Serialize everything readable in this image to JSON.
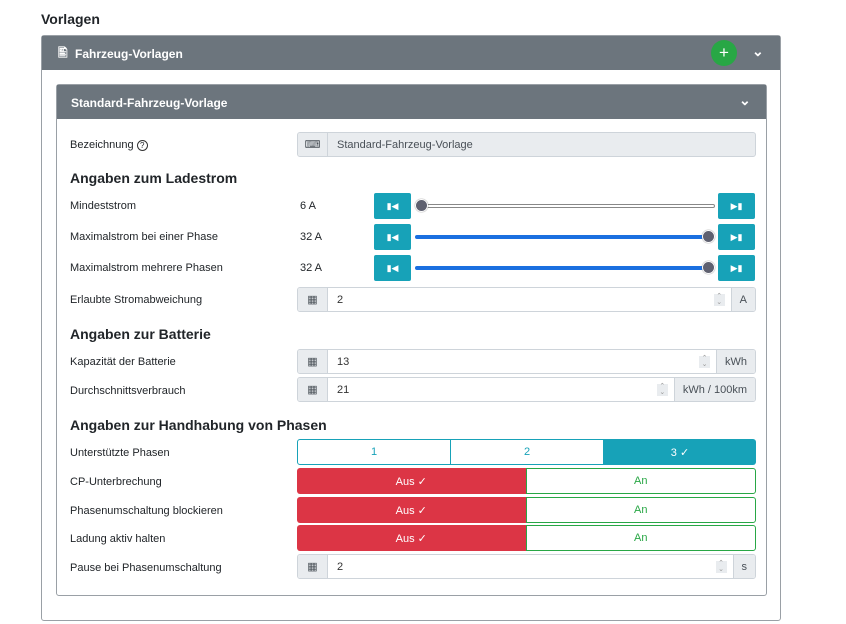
{
  "page_title": "Vorlagen",
  "section": {
    "title": "Fahrzeug-Vorlagen",
    "add_label": "+"
  },
  "template": {
    "title": "Standard-Fahrzeug-Vorlage",
    "name_label": "Bezeichnung",
    "name_value": "Standard-Fahrzeug-Vorlage",
    "h_current": "Angaben zum Ladestrom",
    "sliders": [
      {
        "label": "Mindeststrom",
        "value": "6 A",
        "fraction": 0
      },
      {
        "label": "Maximalstrom bei einer Phase",
        "value": "32 A",
        "fraction": 1
      },
      {
        "label": "Maximalstrom mehrere Phasen",
        "value": "32 A",
        "fraction": 1
      }
    ],
    "deviation": {
      "label": "Erlaubte Stromabweichung",
      "value": "2",
      "unit": "A"
    },
    "h_battery": "Angaben zur Batterie",
    "capacity": {
      "label": "Kapazität der Batterie",
      "value": "13",
      "unit": "kWh"
    },
    "consumption": {
      "label": "Durchschnittsverbrauch",
      "value": "21",
      "unit": "kWh / 100km"
    },
    "h_phases": "Angaben zur Handhabung von Phasen",
    "phases": {
      "label": "Unterstützte Phasen",
      "options": [
        "1",
        "2",
        "3 ✓"
      ],
      "selected": "3"
    },
    "toggles": [
      {
        "label": "CP-Unterbrechung",
        "off": "Aus ✓",
        "on": "An"
      },
      {
        "label": "Phasenumschaltung blockieren",
        "off": "Aus ✓",
        "on": "An"
      },
      {
        "label": "Ladung aktiv halten",
        "off": "Aus ✓",
        "on": "An"
      }
    ],
    "pause": {
      "label": "Pause bei Phasenumschaltung",
      "value": "2",
      "unit": "s"
    }
  },
  "colors": {
    "header": "#6c757d",
    "accent": "#17a2b8",
    "danger": "#dc3545",
    "success": "#28a745",
    "slider": "#1a6fe0"
  }
}
